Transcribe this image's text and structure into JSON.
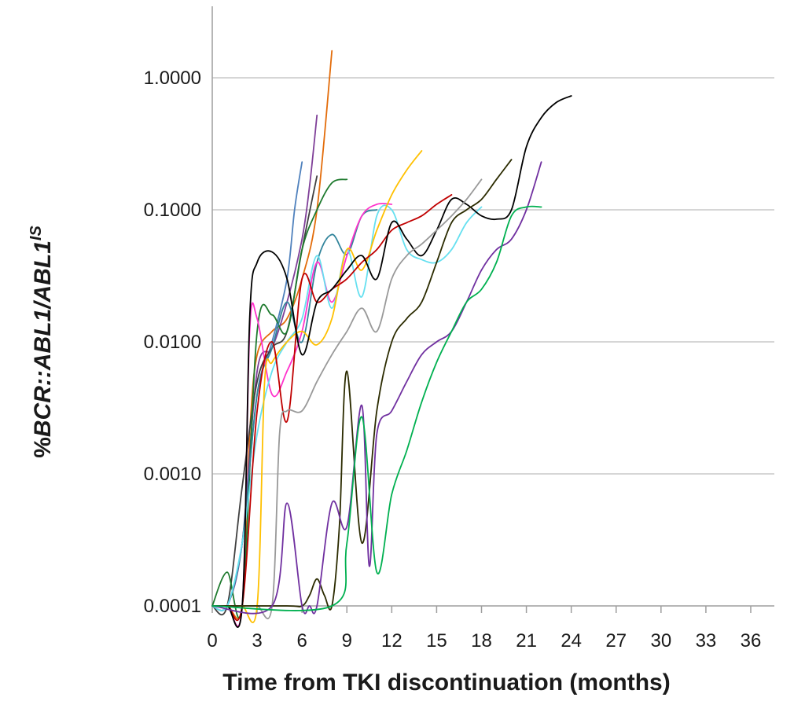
{
  "chart_data": {
    "type": "line",
    "xlabel": "Time from TKI discontinuation (months)",
    "ylabel": {
      "prefix": "%",
      "italic_main": "BCR::ABL1/ABL1",
      "superscript": "IS"
    },
    "xlim": [
      0,
      36
    ],
    "x_ticks": [
      0,
      3,
      6,
      9,
      12,
      15,
      18,
      21,
      24,
      27,
      30,
      33,
      36
    ],
    "x_tick_labels": [
      "0",
      "3",
      "6",
      "9",
      "12",
      "15",
      "18",
      "21",
      "24",
      "27",
      "30",
      "33",
      "36"
    ],
    "y_scale": "log",
    "ylim": [
      0.0001,
      3.0
    ],
    "y_ticks": [
      0.0001,
      0.001,
      0.01,
      0.1,
      1.0
    ],
    "y_tick_labels": [
      "0.0001",
      "0.0010",
      "0.0100",
      "0.1000",
      "1.0000"
    ],
    "grid": "horizontal",
    "legend": "none",
    "series": [
      {
        "color": "#e36c0a",
        "x": [
          0,
          1,
          2,
          2.5,
          3,
          4,
          5,
          6,
          7,
          8
        ],
        "y": [
          0.0001,
          0.0001,
          0.0001,
          0.002,
          0.008,
          0.012,
          0.015,
          0.03,
          0.1,
          1.6
        ]
      },
      {
        "color": "#4f81bd",
        "x": [
          0,
          1,
          2,
          3,
          4,
          5,
          5.5,
          6
        ],
        "y": [
          0.0001,
          0.0001,
          0.0003,
          0.004,
          0.01,
          0.03,
          0.1,
          0.23
        ]
      },
      {
        "color": "#7f3f98",
        "x": [
          0,
          1,
          2,
          3,
          4,
          5,
          6,
          6.5,
          7
        ],
        "y": [
          0.0001,
          0.0001,
          0.0003,
          0.006,
          0.009,
          0.02,
          0.06,
          0.15,
          0.52
        ]
      },
      {
        "color": "#404040",
        "x": [
          0,
          1,
          2,
          3,
          4,
          5,
          6,
          7
        ],
        "y": [
          0.0001,
          0.0001,
          0.0008,
          0.005,
          0.009,
          0.012,
          0.05,
          0.18
        ]
      },
      {
        "color": "#1e7a2e",
        "x": [
          0,
          1,
          2,
          3,
          4,
          5,
          6,
          7,
          8,
          9
        ],
        "y": [
          0.0001,
          0.00018,
          0.0001,
          0.012,
          0.016,
          0.012,
          0.05,
          0.1,
          0.16,
          0.17
        ]
      },
      {
        "color": "#31849b",
        "x": [
          0,
          1,
          2,
          3,
          4,
          5,
          6,
          7,
          8,
          9,
          10,
          11
        ],
        "y": [
          0.0001,
          0.0001,
          0.0003,
          0.004,
          0.009,
          0.02,
          0.01,
          0.04,
          0.065,
          0.046,
          0.09,
          0.1
        ]
      },
      {
        "color": "#ff33cc",
        "x": [
          0,
          1,
          2,
          2.5,
          3,
          4,
          5,
          6,
          7,
          8,
          9,
          10,
          11,
          12
        ],
        "y": [
          0.0001,
          0.0001,
          0.0001,
          0.012,
          0.015,
          0.004,
          0.006,
          0.012,
          0.04,
          0.02,
          0.045,
          0.09,
          0.11,
          0.11
        ]
      },
      {
        "color": "#66e0f0",
        "x": [
          0,
          1,
          2,
          3,
          4,
          5,
          6,
          7,
          8,
          9,
          10,
          11,
          12,
          13,
          14,
          15,
          16,
          17,
          18
        ],
        "y": [
          0.0001,
          0.0001,
          0.0003,
          0.002,
          0.006,
          0.01,
          0.015,
          0.045,
          0.018,
          0.05,
          0.022,
          0.09,
          0.1,
          0.05,
          0.042,
          0.04,
          0.05,
          0.08,
          0.105
        ]
      },
      {
        "color": "#ffc000",
        "x": [
          0,
          1,
          2,
          3,
          3.5,
          4,
          5,
          6,
          7,
          8,
          9,
          10,
          11,
          12,
          13,
          14
        ],
        "y": [
          0.0001,
          0.0001,
          0.0001,
          0.0001,
          0.005,
          0.007,
          0.01,
          0.012,
          0.0095,
          0.015,
          0.05,
          0.035,
          0.07,
          0.13,
          0.2,
          0.28
        ]
      },
      {
        "color": "#c00000",
        "x": [
          0,
          1,
          2,
          3,
          4,
          5,
          6,
          7,
          8,
          9,
          10,
          11,
          12,
          13,
          14,
          15,
          16
        ],
        "y": [
          0.0001,
          0.0001,
          0.0001,
          0.003,
          0.01,
          0.0025,
          0.03,
          0.02,
          0.025,
          0.03,
          0.04,
          0.05,
          0.07,
          0.08,
          0.09,
          0.11,
          0.13
        ]
      },
      {
        "color": "#000000",
        "x": [
          0,
          1,
          2,
          2.5,
          3,
          4,
          5,
          6,
          7,
          8,
          9,
          10,
          11,
          12,
          13,
          14,
          15,
          16,
          17,
          18,
          19,
          20,
          21,
          22,
          23,
          24
        ],
        "y": [
          0.0001,
          0.0001,
          0.0001,
          0.015,
          0.04,
          0.048,
          0.03,
          0.008,
          0.02,
          0.025,
          0.035,
          0.045,
          0.03,
          0.08,
          0.06,
          0.045,
          0.07,
          0.12,
          0.11,
          0.09,
          0.085,
          0.1,
          0.3,
          0.5,
          0.65,
          0.73
        ]
      },
      {
        "color": "#999999",
        "x": [
          0,
          1,
          2,
          3,
          4,
          4.5,
          5,
          6,
          7,
          8,
          9,
          10,
          11,
          12,
          13,
          14,
          15,
          16,
          17,
          18
        ],
        "y": [
          0.0001,
          0.0001,
          0.0001,
          0.0001,
          0.0001,
          0.002,
          0.003,
          0.003,
          0.005,
          0.008,
          0.012,
          0.018,
          0.012,
          0.03,
          0.045,
          0.055,
          0.07,
          0.09,
          0.12,
          0.17
        ]
      },
      {
        "color": "#2b2b00",
        "x": [
          0,
          5,
          6,
          6.5,
          7,
          7.5,
          8,
          8.5,
          9,
          10,
          11,
          12,
          13,
          14,
          15,
          16,
          17,
          18,
          19,
          20
        ],
        "y": [
          0.0001,
          0.0001,
          0.0001,
          0.00012,
          0.00016,
          0.00012,
          0.0001,
          0.0004,
          0.006,
          0.0003,
          0.003,
          0.01,
          0.015,
          0.02,
          0.04,
          0.08,
          0.1,
          0.12,
          0.17,
          0.24
        ]
      },
      {
        "color": "#7030a0",
        "x": [
          0,
          4,
          5,
          6,
          6.5,
          7,
          8,
          9,
          10,
          10.5,
          11,
          12,
          13,
          14,
          15,
          16,
          17,
          18,
          19,
          20,
          21,
          22
        ],
        "y": [
          0.0001,
          0.0001,
          0.0006,
          0.0001,
          9e-05,
          0.0001,
          0.0006,
          0.0004,
          0.0033,
          0.0002,
          0.002,
          0.003,
          0.005,
          0.008,
          0.01,
          0.012,
          0.02,
          0.035,
          0.05,
          0.06,
          0.1,
          0.23
        ]
      },
      {
        "color": "#00b050",
        "x": [
          0,
          8,
          9,
          10,
          11,
          12,
          13,
          14,
          15,
          16,
          17,
          18,
          19,
          20,
          21,
          22
        ],
        "y": [
          0.0001,
          0.0001,
          0.0003,
          0.0027,
          0.00018,
          0.0007,
          0.0015,
          0.0035,
          0.007,
          0.012,
          0.02,
          0.025,
          0.04,
          0.09,
          0.105,
          0.105
        ]
      }
    ]
  }
}
